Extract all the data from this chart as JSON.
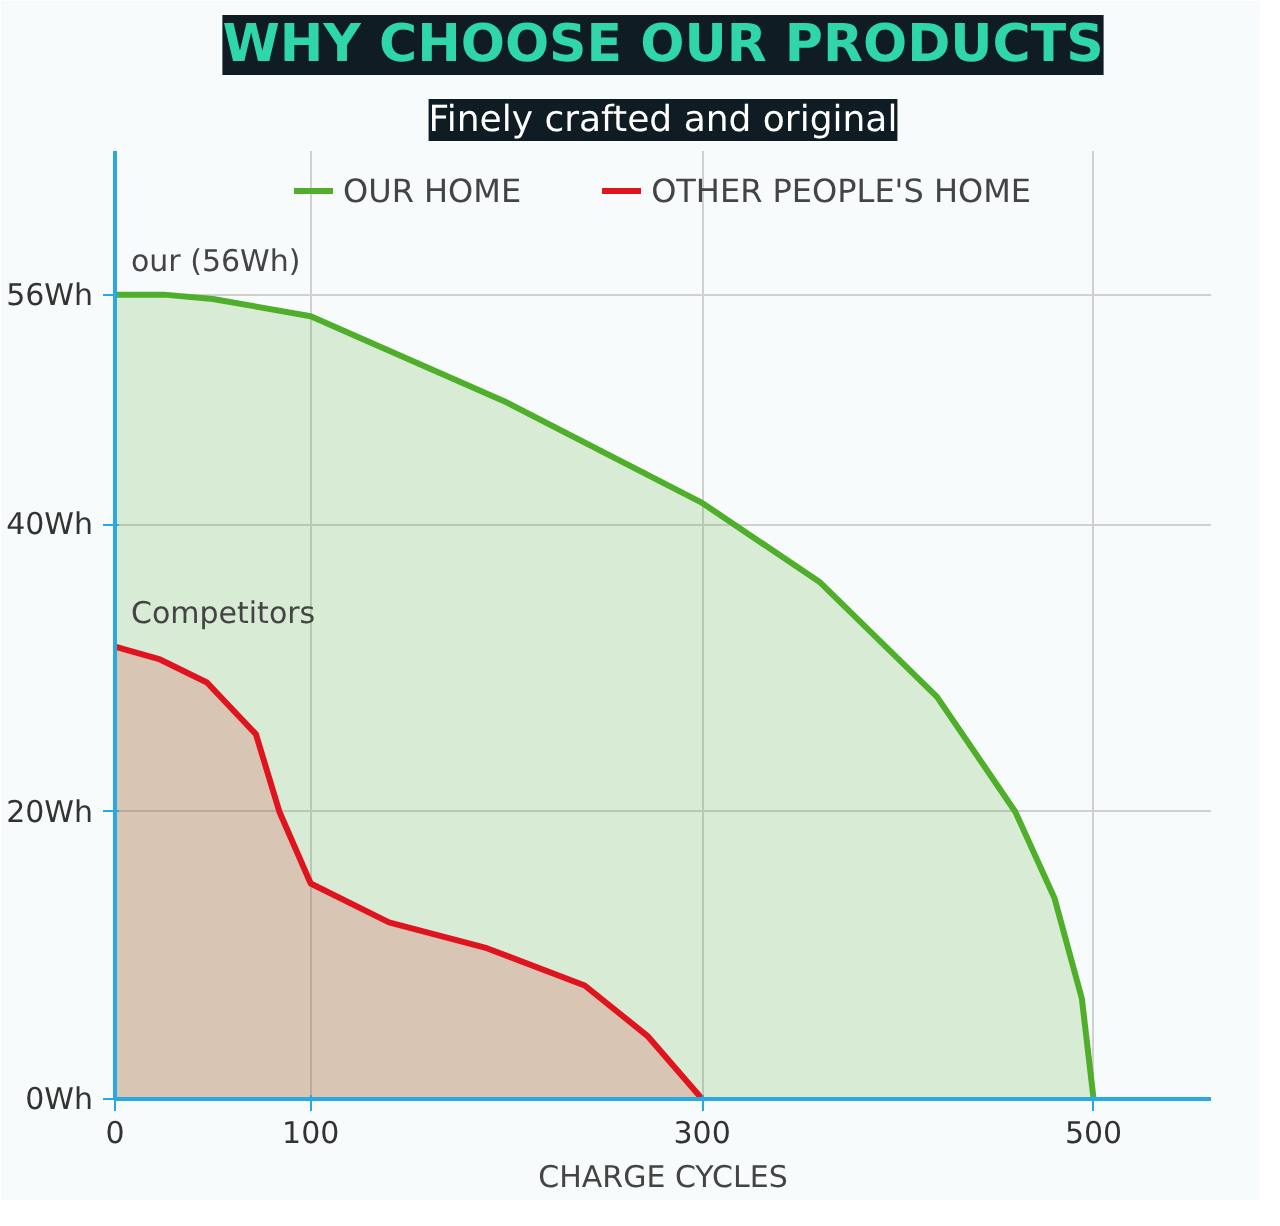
{
  "chart_data": {
    "type": "area",
    "title": "WHY CHOOSE OUR PRODUCTS",
    "subtitle": "Finely crafted and original",
    "xlabel": "CHARGE CYCLES",
    "xlim": [
      0,
      560
    ],
    "xticks": [
      0,
      100,
      300,
      500
    ],
    "ylim": [
      0,
      66
    ],
    "yticks": [
      {
        "value": 0,
        "label": "0Wh"
      },
      {
        "value": 20,
        "label": "20Wh"
      },
      {
        "value": 40,
        "label": "40Wh"
      },
      {
        "value": 56,
        "label": "56Wh"
      }
    ],
    "grid": true,
    "legend": "top",
    "series": [
      {
        "name": "OUR HOME",
        "color": "#4fae2a",
        "x": [
          0,
          25,
          50,
          100,
          200,
          300,
          360,
          420,
          460,
          480,
          494,
          500
        ],
        "values": [
          56,
          56,
          55.7,
          54.5,
          48.5,
          41.5,
          36,
          28,
          20,
          14,
          7,
          0
        ]
      },
      {
        "name": "OTHER PEOPLE'S HOME",
        "color": "#e0141e",
        "x": [
          0,
          23,
          47,
          72,
          84,
          100,
          140,
          190,
          240,
          272,
          300
        ],
        "values": [
          31.5,
          30.6,
          29,
          25.4,
          20,
          15,
          12.3,
          10.5,
          7.9,
          4.4,
          0
        ]
      }
    ],
    "annotations": [
      {
        "text": "our (56Wh)",
        "x": 0,
        "y": 56
      },
      {
        "text": "Competitors",
        "x": 0,
        "y": 31.5
      }
    ]
  }
}
